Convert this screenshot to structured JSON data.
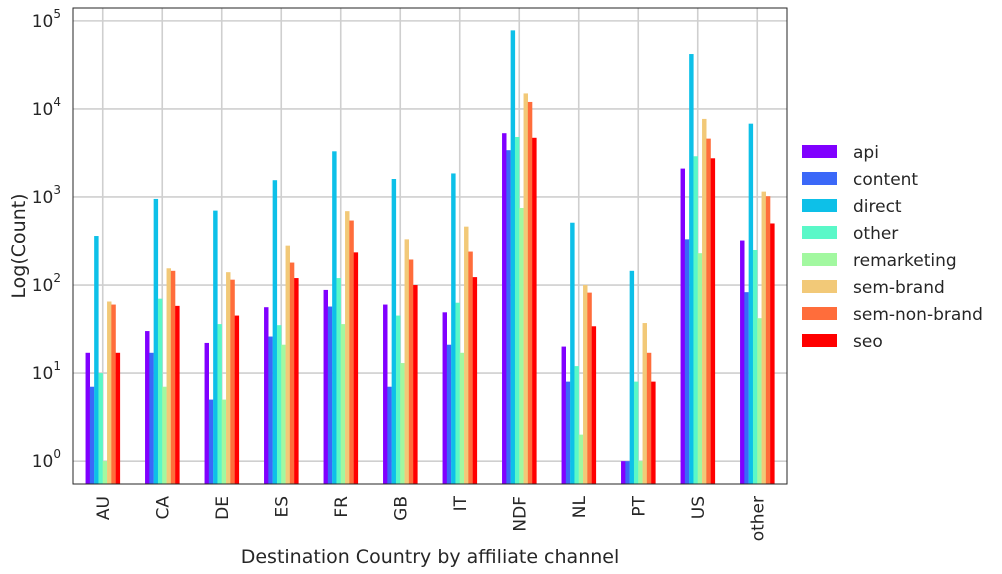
{
  "chart_data": {
    "type": "bar",
    "xlabel": "Destination Country by affiliate channel",
    "ylabel": "Log(Count)",
    "yscale": "log",
    "ylim": [
      0.55,
      140000
    ],
    "yticks": [
      {
        "value": 1,
        "base": "10",
        "exp": "0"
      },
      {
        "value": 10,
        "base": "10",
        "exp": "1"
      },
      {
        "value": 100,
        "base": "10",
        "exp": "2"
      },
      {
        "value": 1000,
        "base": "10",
        "exp": "3"
      },
      {
        "value": 10000,
        "base": "10",
        "exp": "4"
      },
      {
        "value": 100000,
        "base": "10",
        "exp": "5"
      }
    ],
    "grid": true,
    "legend_position": "right",
    "categories": [
      "AU",
      "CA",
      "DE",
      "ES",
      "FR",
      "GB",
      "IT",
      "NDF",
      "NL",
      "PT",
      "US",
      "other"
    ],
    "series": [
      {
        "name": "api",
        "color": "#8000ff",
        "values": [
          17,
          30,
          22,
          56,
          88,
          60,
          49,
          5300,
          20,
          1,
          2100,
          320
        ]
      },
      {
        "name": "content",
        "color": "#3b68f8",
        "values": [
          7,
          17,
          5,
          26,
          57,
          7,
          21,
          3400,
          8,
          1,
          330,
          83
        ]
      },
      {
        "name": "direct",
        "color": "#0dc0e8",
        "values": [
          360,
          950,
          700,
          1550,
          3300,
          1600,
          1850,
          78000,
          510,
          145,
          42000,
          6800
        ]
      },
      {
        "name": "other",
        "color": "#5af8c8",
        "values": [
          10,
          70,
          36,
          35,
          120,
          45,
          63,
          4800,
          12,
          8,
          2900,
          250
        ]
      },
      {
        "name": "remarketing",
        "color": "#a2f8a0",
        "values": [
          1,
          7,
          5,
          21,
          36,
          13,
          17,
          750,
          2,
          1,
          230,
          42
        ]
      },
      {
        "name": "sem-brand",
        "color": "#f2c978",
        "values": [
          65,
          155,
          140,
          280,
          690,
          330,
          460,
          15000,
          100,
          37,
          7700,
          1150
        ]
      },
      {
        "name": "sem-non-brand",
        "color": "#ff6d3b",
        "values": [
          60,
          145,
          115,
          180,
          540,
          195,
          240,
          12000,
          82,
          17,
          4600,
          1020
        ]
      },
      {
        "name": "seo",
        "color": "#ff0000",
        "values": [
          17,
          58,
          45,
          120,
          235,
          100,
          123,
          4700,
          34,
          8,
          2750,
          500
        ]
      }
    ]
  }
}
